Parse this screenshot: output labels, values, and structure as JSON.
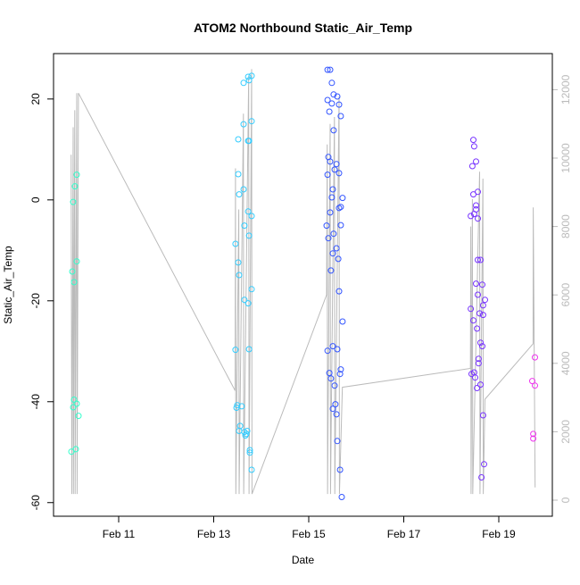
{
  "chart_data": {
    "type": "scatter",
    "title": "ATOM2 Northbound Static_Air_Temp",
    "xlabel": "Date",
    "ylabel": "Static_Air_Temp",
    "xlim": [
      "Feb 9 15:06",
      "Feb 20 03:03"
    ],
    "ylim": [
      -62.7,
      29.0
    ],
    "x_ticks": [
      "Feb 11",
      "Feb 13",
      "Feb 15",
      "Feb 17",
      "Feb 19"
    ],
    "y_ticks": [
      -60,
      -40,
      -20,
      0,
      20
    ],
    "y2lim": [
      -470,
      13055
    ],
    "y2_ticks": [
      0,
      2000,
      4000,
      6000,
      8000,
      10000,
      12000
    ],
    "y2_color": "#bbbbbb",
    "grid": false,
    "marker": "open-circle",
    "series": [
      {
        "color": "#33ffcc",
        "points": [
          [
            "Feb 10 02:49",
            5.0
          ],
          [
            "Feb 10 01:55",
            2.7
          ],
          [
            "Feb 10 01:01",
            -0.4
          ],
          [
            "Feb 10 02:49",
            -12.2
          ],
          [
            "Feb 10 00:34",
            -14.2
          ],
          [
            "Feb 10 01:28",
            -16.3
          ],
          [
            "Feb 10 01:28",
            -39.6
          ],
          [
            "Feb 10 02:49",
            -40.4
          ],
          [
            "Feb 10 01:01",
            -41.1
          ],
          [
            "Feb 10 03:43",
            -42.8
          ],
          [
            "Feb 10 02:22",
            -49.4
          ],
          [
            "Feb 10 00:07",
            -49.9
          ]
        ]
      },
      {
        "color": "#33ccff",
        "points": [
          [
            "Feb 13 19:10",
            24.6
          ],
          [
            "Feb 13 17:25",
            24.4
          ],
          [
            "Feb 13 17:50",
            23.7
          ],
          [
            "Feb 13 15:05",
            23.2
          ],
          [
            "Feb 13 19:10",
            15.6
          ],
          [
            "Feb 13 15:05",
            15.0
          ],
          [
            "Feb 13 12:25",
            12.0
          ],
          [
            "Feb 13 17:25",
            11.7
          ],
          [
            "Feb 13 17:50",
            11.7
          ],
          [
            "Feb 13 12:25",
            5.1
          ],
          [
            "Feb 13 15:05",
            2.1
          ],
          [
            "Feb 13 12:50",
            1.1
          ],
          [
            "Feb 13 17:25",
            -2.3
          ],
          [
            "Feb 13 19:10",
            -3.2
          ],
          [
            "Feb 13 15:30",
            -5.1
          ],
          [
            "Feb 13 17:50",
            -7.1
          ],
          [
            "Feb 13 11:00",
            -8.7
          ],
          [
            "Feb 13 12:25",
            -12.4
          ],
          [
            "Feb 13 12:50",
            -14.9
          ],
          [
            "Feb 13 19:10",
            -17.7
          ],
          [
            "Feb 13 15:30",
            -19.8
          ],
          [
            "Feb 13 17:25",
            -20.5
          ],
          [
            "Feb 13 11:00",
            -29.7
          ],
          [
            "Feb 13 17:50",
            -29.6
          ],
          [
            "Feb 13 11:55",
            -40.7
          ],
          [
            "Feb 13 11:30",
            -41.2
          ],
          [
            "Feb 13 14:10",
            -40.9
          ],
          [
            "Feb 13 13:20",
            -44.8
          ],
          [
            "Feb 13 12:50",
            -45.8
          ],
          [
            "Feb 13 15:30",
            -46.0
          ],
          [
            "Feb 13 16:55",
            -45.8
          ],
          [
            "Feb 13 16:00",
            -46.7
          ],
          [
            "Feb 13 16:30",
            -46.4
          ],
          [
            "Feb 13 18:15",
            -49.6
          ],
          [
            "Feb 13 18:15",
            -50.1
          ],
          [
            "Feb 13 19:10",
            -53.5
          ]
        ]
      },
      {
        "color": "#3355ff",
        "points": [
          [
            "Feb 15 09:30",
            25.8
          ],
          [
            "Feb 15 10:50",
            25.8
          ],
          [
            "Feb 15 11:40",
            23.2
          ],
          [
            "Feb 15 12:35",
            20.9
          ],
          [
            "Feb 15 14:25",
            20.5
          ],
          [
            "Feb 15 09:30",
            19.8
          ],
          [
            "Feb 15 11:40",
            19.1
          ],
          [
            "Feb 15 15:20",
            18.9
          ],
          [
            "Feb 15 10:25",
            17.5
          ],
          [
            "Feb 15 16:10",
            16.6
          ],
          [
            "Feb 15 12:35",
            13.8
          ],
          [
            "Feb 15 09:55",
            8.5
          ],
          [
            "Feb 15 10:50",
            7.6
          ],
          [
            "Feb 15 14:00",
            7.1
          ],
          [
            "Feb 15 13:05",
            6.0
          ],
          [
            "Feb 15 15:20",
            5.3
          ],
          [
            "Feb 15 09:30",
            5.0
          ],
          [
            "Feb 15 12:10",
            2.1
          ],
          [
            "Feb 15 11:40",
            0.5
          ],
          [
            "Feb 15 17:05",
            0.4
          ],
          [
            "Feb 15 15:20",
            -1.6
          ],
          [
            "Feb 15 16:10",
            -1.4
          ],
          [
            "Feb 15 10:50",
            -2.5
          ],
          [
            "Feb 15 09:00",
            -5.1
          ],
          [
            "Feb 15 16:10",
            -5.0
          ],
          [
            "Feb 15 12:35",
            -6.7
          ],
          [
            "Feb 15 09:55",
            -7.6
          ],
          [
            "Feb 15 14:00",
            -9.6
          ],
          [
            "Feb 15 12:10",
            -10.6
          ],
          [
            "Feb 15 14:55",
            -11.7
          ],
          [
            "Feb 15 11:15",
            -14.0
          ],
          [
            "Feb 15 15:20",
            -18.1
          ],
          [
            "Feb 15 17:05",
            -24.1
          ],
          [
            "Feb 15 12:10",
            -29.0
          ],
          [
            "Feb 15 09:30",
            -29.9
          ],
          [
            "Feb 15 14:25",
            -29.6
          ],
          [
            "Feb 15 16:10",
            -33.6
          ],
          [
            "Feb 15 10:25",
            -34.3
          ],
          [
            "Feb 15 15:50",
            -34.5
          ],
          [
            "Feb 15 11:15",
            -35.4
          ],
          [
            "Feb 15 13:05",
            -36.8
          ],
          [
            "Feb 15 13:30",
            -40.5
          ],
          [
            "Feb 15 12:10",
            -41.4
          ],
          [
            "Feb 15 14:00",
            -42.5
          ],
          [
            "Feb 15 14:25",
            -47.8
          ],
          [
            "Feb 15 15:50",
            -53.5
          ],
          [
            "Feb 15 16:40",
            -58.9
          ]
        ]
      },
      {
        "color": "#7733ff",
        "points": [
          [
            "Feb 18 11:10",
            11.9
          ],
          [
            "Feb 18 11:35",
            10.6
          ],
          [
            "Feb 18 12:30",
            7.6
          ],
          [
            "Feb 18 10:40",
            6.7
          ],
          [
            "Feb 18 11:10",
            1.1
          ],
          [
            "Feb 18 13:25",
            1.6
          ],
          [
            "Feb 18 12:30",
            -1.1
          ],
          [
            "Feb 18 12:30",
            -1.9
          ],
          [
            "Feb 18 11:35",
            -2.8
          ],
          [
            "Feb 18 09:50",
            -3.2
          ],
          [
            "Feb 18 13:25",
            -3.7
          ],
          [
            "Feb 18 13:25",
            -11.9
          ],
          [
            "Feb 18 14:45",
            -11.9
          ],
          [
            "Feb 18 12:30",
            -16.6
          ],
          [
            "Feb 18 15:40",
            -16.8
          ],
          [
            "Feb 18 13:25",
            -18.8
          ],
          [
            "Feb 18 17:00",
            -19.8
          ],
          [
            "Feb 18 16:05",
            -20.9
          ],
          [
            "Feb 18 09:50",
            -21.6
          ],
          [
            "Feb 18 14:20",
            -22.5
          ],
          [
            "Feb 18 16:05",
            -22.8
          ],
          [
            "Feb 18 11:10",
            -23.9
          ],
          [
            "Feb 18 13:00",
            -25.5
          ],
          [
            "Feb 18 14:45",
            -28.3
          ],
          [
            "Feb 18 15:40",
            -29.0
          ],
          [
            "Feb 18 13:50",
            -31.5
          ],
          [
            "Feb 18 13:50",
            -32.4
          ],
          [
            "Feb 18 11:35",
            -34.2
          ],
          [
            "Feb 18 10:15",
            -34.5
          ],
          [
            "Feb 18 12:05",
            -35.2
          ],
          [
            "Feb 18 14:45",
            -36.6
          ],
          [
            "Feb 18 13:00",
            -37.3
          ],
          [
            "Feb 18 16:05",
            -42.7
          ],
          [
            "Feb 18 16:35",
            -52.4
          ],
          [
            "Feb 18 15:15",
            -55.0
          ]
        ]
      },
      {
        "color": "#ee33ee",
        "points": [
          [
            "Feb 19 18:15",
            -31.2
          ],
          [
            "Feb 19 16:55",
            -35.9
          ],
          [
            "Feb 19 18:15",
            -36.8
          ],
          [
            "Feb 19 17:25",
            -46.4
          ],
          [
            "Feb 19 17:25",
            -47.3
          ]
        ]
      }
    ],
    "secondary_line": {
      "color": "#bbbbbb",
      "axis": "right",
      "points": [
        [
          "Feb 10 00:00",
          10100
        ],
        [
          "Feb 10 00:20",
          180
        ],
        [
          "Feb 10 01:00",
          10900
        ],
        [
          "Feb 10 01:10",
          180
        ],
        [
          "Feb 10 01:50",
          11400
        ],
        [
          "Feb 10 02:00",
          180
        ],
        [
          "Feb 10 02:50",
          11900
        ],
        [
          "Feb 10 03:00",
          180
        ],
        [
          "Feb 10 03:40",
          11900
        ],
        [
          "Feb 13 10:50",
          3200
        ],
        [
          "Feb 13 11:00",
          9700
        ],
        [
          "Feb 13 11:10",
          180
        ],
        [
          "Feb 13 12:40",
          8500
        ],
        [
          "Feb 13 12:50",
          180
        ],
        [
          "Feb 13 15:00",
          11300
        ],
        [
          "Feb 13 15:10",
          180
        ],
        [
          "Feb 13 17:40",
          12400
        ],
        [
          "Feb 13 17:50",
          180
        ],
        [
          "Feb 13 19:10",
          12600
        ],
        [
          "Feb 13 19:20",
          180
        ],
        [
          "Feb 15 09:00",
          6000
        ],
        [
          "Feb 15 09:20",
          10400
        ],
        [
          "Feb 15 09:30",
          180
        ],
        [
          "Feb 15 10:50",
          11000
        ],
        [
          "Feb 15 11:00",
          180
        ],
        [
          "Feb 15 13:00",
          11200
        ],
        [
          "Feb 15 13:10",
          180
        ],
        [
          "Feb 15 15:20",
          11800
        ],
        [
          "Feb 15 15:30",
          180
        ],
        [
          "Feb 15 17:00",
          3300
        ],
        [
          "Feb 18 09:40",
          3850
        ],
        [
          "Feb 18 09:50",
          8000
        ],
        [
          "Feb 18 10:00",
          180
        ],
        [
          "Feb 18 10:40",
          8800
        ],
        [
          "Feb 18 10:50",
          180
        ],
        [
          "Feb 18 14:20",
          9600
        ],
        [
          "Feb 18 14:30",
          180
        ],
        [
          "Feb 18 16:00",
          9400
        ],
        [
          "Feb 18 16:10",
          180
        ],
        [
          "Feb 18 17:00",
          2950
        ],
        [
          "Feb 19 17:20",
          4570
        ],
        [
          "Feb 19 17:25",
          8560
        ],
        [
          "Feb 19 18:20",
          370
        ]
      ]
    }
  }
}
